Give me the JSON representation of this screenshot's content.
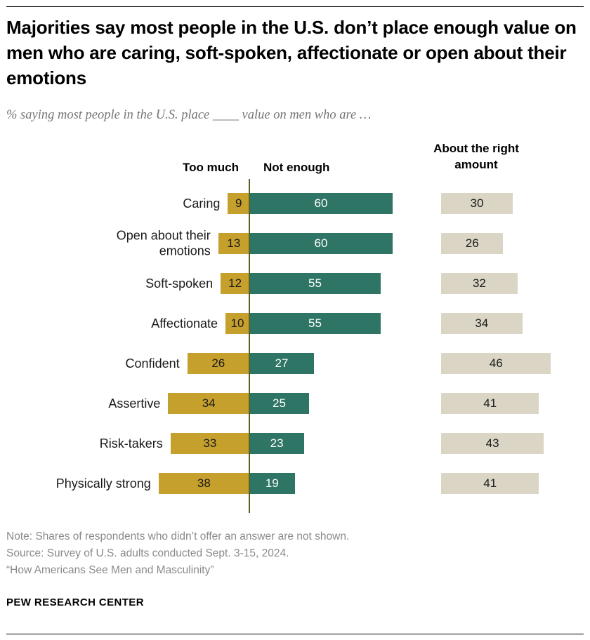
{
  "page": {
    "title": "Majorities say most people in the U.S. don’t place enough value on men who are caring, soft-spoken, affectionate or open about their emotions",
    "subtitle": "% saying most people in the U.S. place ____ value on men who are …",
    "notes": [
      "Note: Shares of respondents who didn’t offer an answer are not shown.",
      "Source: Survey of U.S. adults conducted Sept. 3-15, 2024.",
      "“How Americans See Men and Masculinity”"
    ],
    "brand": "PEW RESEARCH CENTER"
  },
  "chart_data": {
    "type": "bar",
    "orientation": "horizontal-diverging",
    "title": "Majorities say most people in the U.S. don’t place enough value on men who are caring, soft-spoken, affectionate or open about their emotions",
    "subtitle": "% saying most people in the U.S. place ____ value on men who are …",
    "legend_position": "column headers above bars",
    "xlim": [
      0,
      60
    ],
    "grid": false,
    "axis_line_color": "#5A6324",
    "categories": [
      "Caring",
      "Open about their emotions",
      "Soft-spoken",
      "Affectionate",
      "Confident",
      "Assertive",
      "Risk-takers",
      "Physically strong"
    ],
    "series": [
      {
        "name": "Too much",
        "color": "#C6A02C",
        "text_color": "#1a1a1a",
        "values": [
          9,
          13,
          12,
          10,
          26,
          34,
          33,
          38
        ]
      },
      {
        "name": "Not enough",
        "color": "#2E7566",
        "text_color": "#ffffff",
        "values": [
          60,
          60,
          55,
          55,
          27,
          25,
          23,
          19
        ]
      },
      {
        "name": "About the right amount",
        "color": "#DAD5C4",
        "text_color": "#1a1a1a",
        "values": [
          30,
          26,
          32,
          34,
          46,
          41,
          43,
          41
        ]
      }
    ]
  }
}
